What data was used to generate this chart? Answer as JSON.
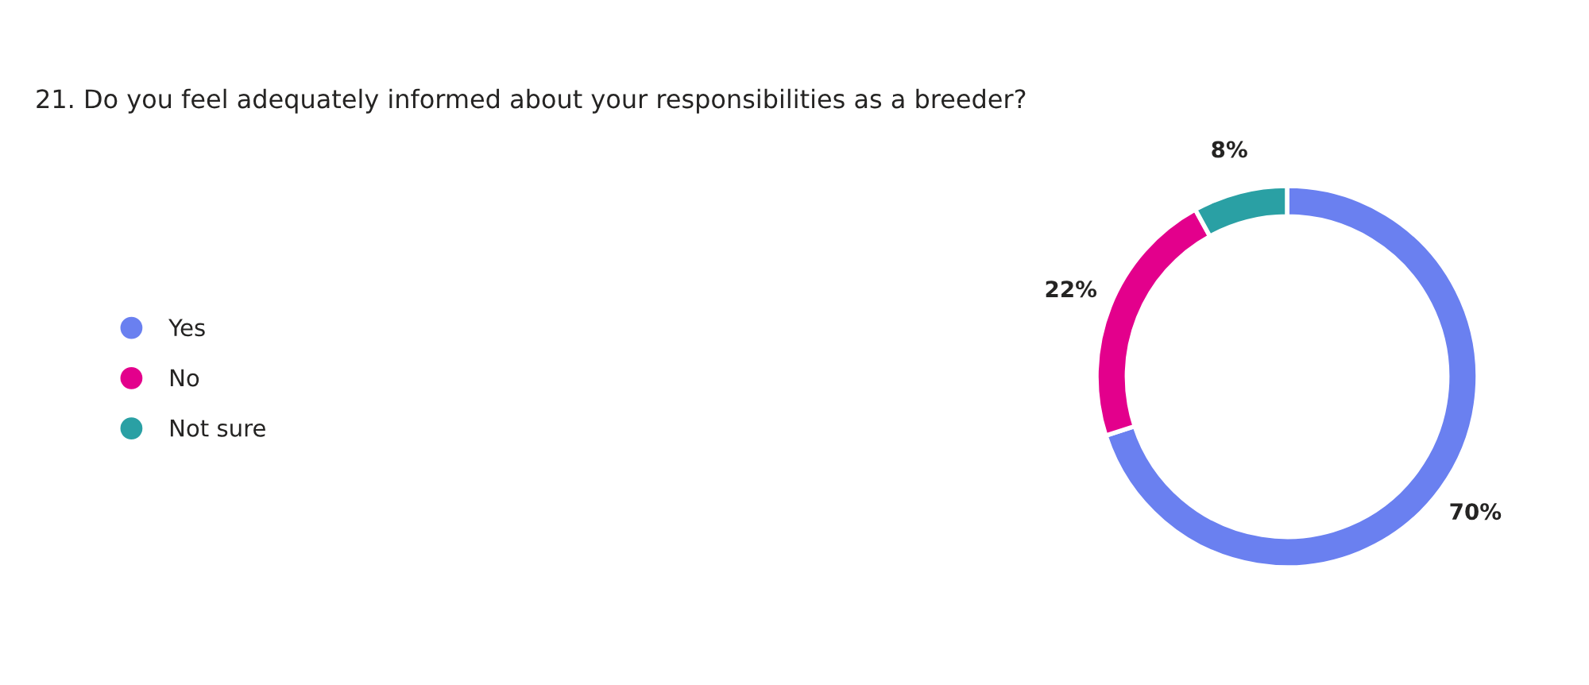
{
  "chart_data": {
    "type": "donut",
    "title": "21. Do you feel adequately informed about your responsibilities as a breeder?",
    "categories": [
      "Yes",
      "No",
      "Not sure"
    ],
    "values": [
      70,
      22,
      8
    ],
    "colors": [
      "#6a80f0",
      "#e3008c",
      "#2aa0a4"
    ],
    "value_labels": [
      "70%",
      "22%",
      "8%"
    ],
    "legend": "left"
  }
}
